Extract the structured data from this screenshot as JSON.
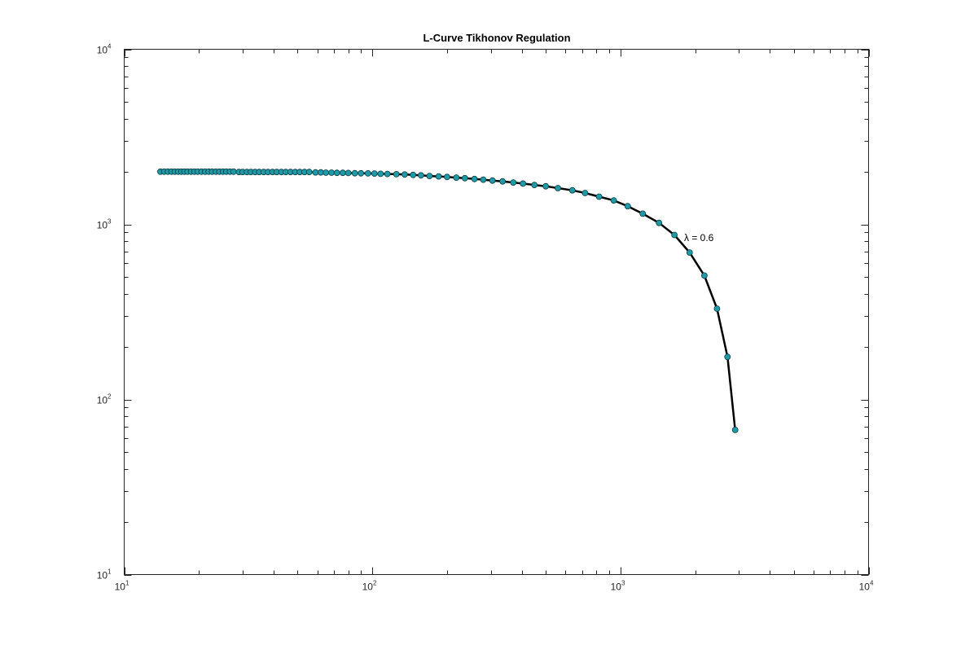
{
  "chart_data": {
    "type": "line",
    "title": "L-Curve Tikhonov Regulation",
    "xlabel": "",
    "ylabel": "",
    "xscale": "log",
    "yscale": "log",
    "xlim": [
      10,
      10000
    ],
    "ylim": [
      10,
      10000
    ],
    "xticks": [
      {
        "base": "10",
        "exp": "1",
        "value": 10
      },
      {
        "base": "10",
        "exp": "2",
        "value": 100
      },
      {
        "base": "10",
        "exp": "3",
        "value": 1000
      },
      {
        "base": "10",
        "exp": "4",
        "value": 10000
      }
    ],
    "yticks": [
      {
        "base": "10",
        "exp": "1",
        "value": 10
      },
      {
        "base": "10",
        "exp": "2",
        "value": 100
      },
      {
        "base": "10",
        "exp": "3",
        "value": 1000
      },
      {
        "base": "10",
        "exp": "4",
        "value": 10000
      }
    ],
    "grid": false,
    "box": true,
    "annotation": {
      "text": "λ = 0.6",
      "x": 1700,
      "y": 840
    },
    "series": [
      {
        "line_color": "#000000",
        "marker_color": "#1f9aa6",
        "marker_edge": "#0a3d44",
        "points": [
          [
            14,
            2000
          ],
          [
            14.5,
            2000
          ],
          [
            15,
            2000
          ],
          [
            15.5,
            2000
          ],
          [
            16,
            2000
          ],
          [
            16.5,
            2000
          ],
          [
            17,
            2000
          ],
          [
            17.5,
            2000
          ],
          [
            18,
            2000
          ],
          [
            18.6,
            2000
          ],
          [
            19.2,
            2000
          ],
          [
            19.8,
            2000
          ],
          [
            20.5,
            2000
          ],
          [
            21.2,
            2000
          ],
          [
            21.9,
            2000
          ],
          [
            22.6,
            2000
          ],
          [
            23.4,
            2000
          ],
          [
            24.2,
            2000
          ],
          [
            25,
            2000
          ],
          [
            25.8,
            2000
          ],
          [
            26.7,
            2000
          ],
          [
            27.6,
            2000
          ],
          [
            29,
            1990
          ],
          [
            30,
            1990
          ],
          [
            31.2,
            1990
          ],
          [
            32.4,
            1990
          ],
          [
            33.7,
            1990
          ],
          [
            35,
            1990
          ],
          [
            36.5,
            1990
          ],
          [
            38,
            1990
          ],
          [
            39.6,
            1990
          ],
          [
            41.2,
            1990
          ],
          [
            43,
            1990
          ],
          [
            44.8,
            1990
          ],
          [
            46.8,
            1990
          ],
          [
            48.9,
            1990
          ],
          [
            51,
            1990
          ],
          [
            53.3,
            1990
          ],
          [
            55.7,
            1990
          ],
          [
            59,
            1980
          ],
          [
            62,
            1980
          ],
          [
            65,
            1975
          ],
          [
            68.5,
            1975
          ],
          [
            72,
            1970
          ],
          [
            76,
            1970
          ],
          [
            80,
            1965
          ],
          [
            85,
            1960
          ],
          [
            90,
            1958
          ],
          [
            96,
            1955
          ],
          [
            102,
            1950
          ],
          [
            108,
            1945
          ],
          [
            115,
            1940
          ],
          [
            125,
            1935
          ],
          [
            135,
            1925
          ],
          [
            146,
            1915
          ],
          [
            157,
            1905
          ],
          [
            170,
            1890
          ],
          [
            185,
            1880
          ],
          [
            200,
            1865
          ],
          [
            218,
            1850
          ],
          [
            236,
            1835
          ],
          [
            258,
            1815
          ],
          [
            280,
            1800
          ],
          [
            305,
            1780
          ],
          [
            335,
            1760
          ],
          [
            370,
            1735
          ],
          [
            405,
            1710
          ],
          [
            450,
            1680
          ],
          [
            500,
            1650
          ],
          [
            560,
            1610
          ],
          [
            640,
            1565
          ],
          [
            720,
            1510
          ],
          [
            820,
            1440
          ],
          [
            940,
            1370
          ],
          [
            1070,
            1270
          ],
          [
            1230,
            1150
          ],
          [
            1430,
            1020
          ],
          [
            1650,
            870
          ],
          [
            1900,
            690
          ],
          [
            2180,
            510
          ],
          [
            2450,
            330
          ],
          [
            2700,
            175
          ],
          [
            2900,
            67
          ]
        ]
      }
    ]
  }
}
